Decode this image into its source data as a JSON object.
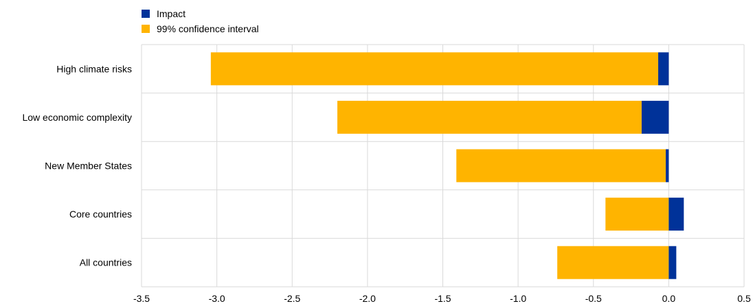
{
  "chart_data": {
    "type": "bar",
    "orientation": "horizontal",
    "categories": [
      "High climate risks",
      "Low economic complexity",
      "New Member States",
      "Core countries",
      "All countries"
    ],
    "series": [
      {
        "name": "Impact",
        "values": [
          -0.07,
          -0.18,
          -0.02,
          0.1,
          0.05
        ],
        "color": "#003299"
      },
      {
        "name": "99% confidence interval",
        "ranges": [
          [
            -3.04,
            -0.07
          ],
          [
            -2.2,
            -0.18
          ],
          [
            -1.41,
            -0.02
          ],
          [
            -0.42,
            0.0
          ],
          [
            -0.74,
            0.0
          ]
        ],
        "color": "#FFB400"
      }
    ],
    "xlim": [
      -3.5,
      0.5
    ],
    "xticks": [
      "-3.5",
      "-3.0",
      "-2.5",
      "-2.0",
      "-1.5",
      "-1.0",
      "-0.5",
      "0.0",
      "0.5"
    ],
    "grid": true,
    "legend_position": "top-left"
  }
}
